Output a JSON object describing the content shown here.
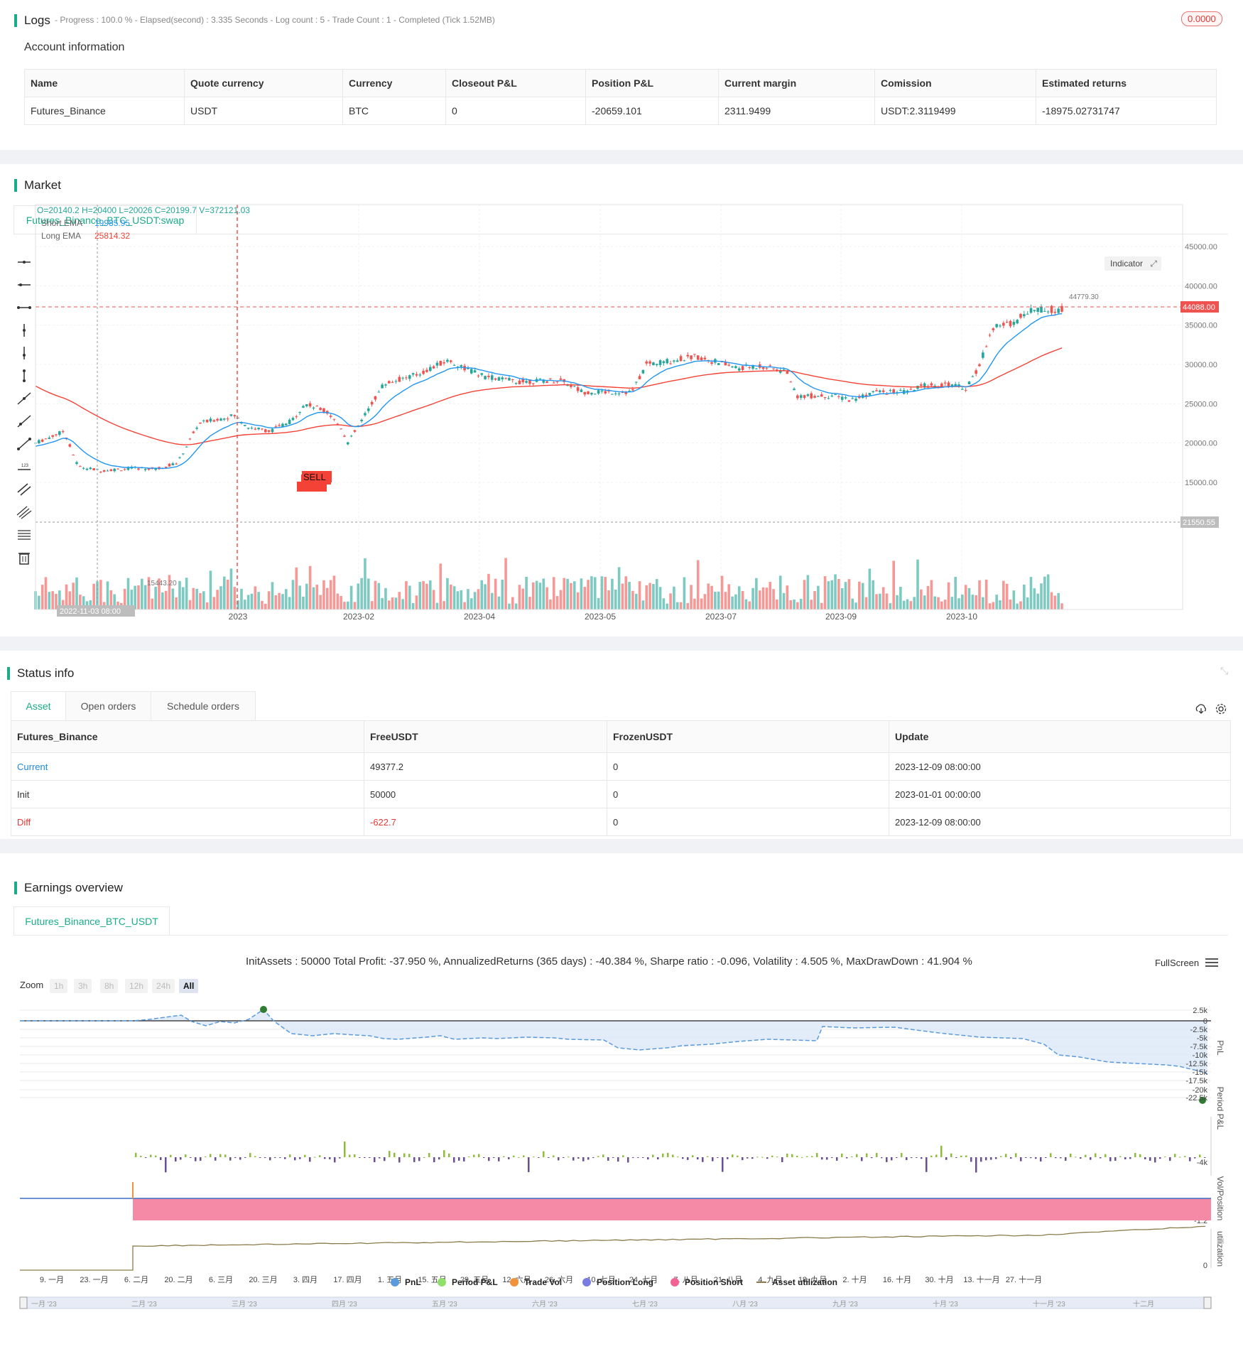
{
  "logs": {
    "title": "Logs",
    "progress": "- Progress : 100.0 % - Elapsed(second) : 3.335  Seconds - Log count : 5 - Trade Count : 1 - Completed (Tick 1.52MB)",
    "badge": "0.0000",
    "account_title": "Account information",
    "columns": [
      "Name",
      "Quote currency",
      "Currency",
      "Closeout P&L",
      "Position P&L",
      "Current margin",
      "Comission",
      "Estimated returns"
    ],
    "row": [
      "Futures_Binance",
      "USDT",
      "BTC",
      "0",
      "-20659.101",
      "2311.9499",
      "USDT:2.3119499",
      "-18975.02731747"
    ]
  },
  "market": {
    "title": "Market",
    "tab": "Futures_Binance_BTC_USDT:swap",
    "ohlc": "O=20140.2  H=20400  L=20026  C=20199.7  V=372121.03",
    "short_ema_label": "Short EMA",
    "short_ema_value": "19985.95",
    "long_ema_label": "Long EMA",
    "long_ema_value": "25814.32",
    "indicator_btn": "Indicator",
    "price_ticks": [
      "45000.00",
      "40000.00",
      "35000.00",
      "30000.00",
      "25000.00",
      "20000.00",
      "15000.00"
    ],
    "current_price": "44088.00",
    "crosshair_price": "21550.55",
    "crosshair_date": "2022-11-03 08:00",
    "high_label": "44779.30",
    "low_label": "15443.20",
    "sell_label": "SELL",
    "date_ticks": [
      "2023",
      "2023-02",
      "2023-04",
      "2023-05",
      "2023-07",
      "2023-09",
      "2023-10"
    ],
    "colors": {
      "up": "#26a69a",
      "down": "#ef5350",
      "short_ema": "#2196f3",
      "long_ema": "#f44336"
    }
  },
  "status": {
    "title": "Status info",
    "tabs": [
      "Asset",
      "Open orders",
      "Schedule orders"
    ],
    "columns": [
      "Futures_Binance",
      "FreeUSDT",
      "FrozenUSDT",
      "Update"
    ],
    "rows": [
      [
        "Current",
        "49377.2",
        "0",
        "2023-12-09 08:00:00"
      ],
      [
        "Init",
        "50000",
        "0",
        "2023-01-01 00:00:00"
      ],
      [
        "Diff",
        "-622.7",
        "0",
        "2023-12-09 08:00:00"
      ]
    ]
  },
  "earnings": {
    "title": "Earnings overview",
    "tab": "Futures_Binance_BTC_USDT",
    "summary": "InitAssets : 50000 Total Profit: -37.950 %, AnnualizedReturns (365 days) : -40.384 %, Sharpe ratio : -0.096, Volatility : 4.505 %, MaxDrawDown : 41.904 %",
    "fullscreen": "FullScreen",
    "zoom_label": "Zoom",
    "zoom_options": [
      "1h",
      "3h",
      "8h",
      "12h",
      "24h",
      "All"
    ],
    "pnl_ticks": [
      "2.5k",
      "0",
      "-2.5k",
      "-5k",
      "-7.5k",
      "-10k",
      "-12.5k",
      "-15k",
      "-17.5k",
      "-20k",
      "-22.5k"
    ],
    "period_tick": "-4k",
    "vol_tick": "-1.2",
    "util_tick": "0",
    "axis_titles": [
      "PnL",
      "Period P&L",
      "Vol/Position",
      "utilization"
    ],
    "date_ticks": [
      "9. 一月",
      "23. 一月",
      "6. 二月",
      "20. 二月",
      "6. 三月",
      "20. 三月",
      "3. 四月",
      "17. 四月",
      "1. 五月",
      "15. 五月",
      "29. 五月",
      "12. 六月",
      "26. 六月",
      "10. 七月",
      "24. 七月",
      "7. 八月",
      "21. 八月",
      "4. 九月",
      "18. 九月",
      "2. 十月",
      "16. 十月",
      "30. 十月",
      "13. 十一月",
      "27. 十一月"
    ],
    "legend": [
      "PnL",
      "Period P&L",
      "Trade Vol",
      "Position Long",
      "Position Short",
      "Asset utilization"
    ],
    "navigator_ticks": [
      "一月 '23",
      "二月 '23",
      "三月 '23",
      "四月 '23",
      "五月 '23",
      "六月 '23",
      "七月 '23",
      "八月 '23",
      "九月 '23",
      "十月 '23",
      "十一月 '23",
      "十二月"
    ]
  }
}
